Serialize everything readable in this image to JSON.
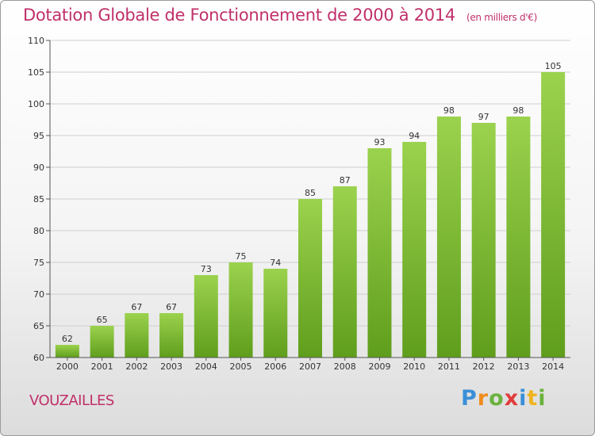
{
  "title": "Dotation Globale de Fonctionnement de 2000 à 2014",
  "subtitle": "(en milliers d'€)",
  "commune": "VOUZAILLES",
  "logo": "Proxiti",
  "colors": {
    "bar": "#7fc136",
    "accent": "#c0306a"
  },
  "chart_data": {
    "type": "bar",
    "title": "Dotation Globale de Fonctionnement de 2000 à 2014",
    "subtitle": "(en milliers d'€)",
    "categories": [
      "2000",
      "2001",
      "2002",
      "2003",
      "2004",
      "2005",
      "2006",
      "2007",
      "2008",
      "2009",
      "2010",
      "2011",
      "2012",
      "2013",
      "2014"
    ],
    "values": [
      62,
      65,
      67,
      67,
      73,
      75,
      74,
      85,
      87,
      93,
      94,
      98,
      97,
      98,
      105
    ],
    "ylim": [
      60,
      110
    ],
    "yticks": [
      60,
      65,
      70,
      75,
      80,
      85,
      90,
      95,
      100,
      105,
      110
    ],
    "grid": true
  }
}
